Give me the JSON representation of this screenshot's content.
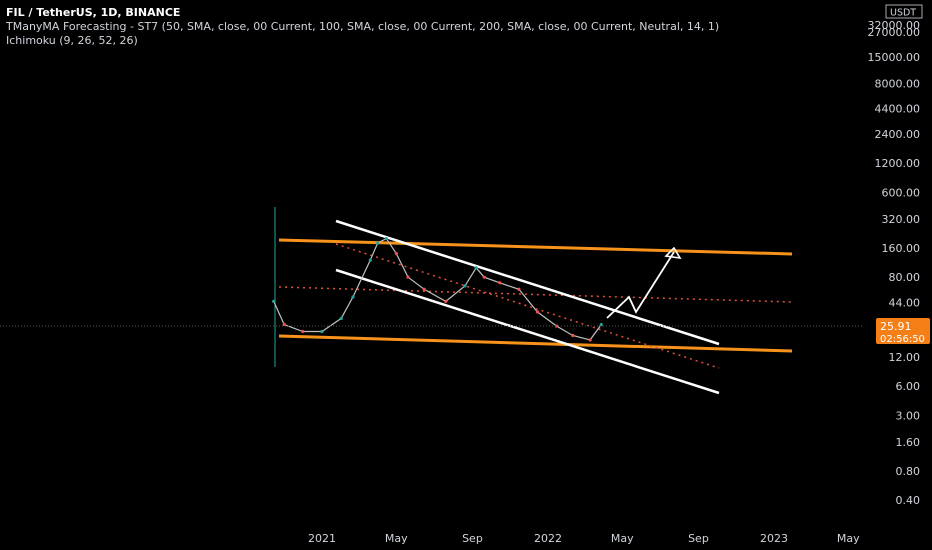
{
  "header": {
    "title": "FIL / TetherUS, 1D, BINANCE",
    "indicator1": "TManyMA Forecasting - ST7 (50, SMA, close, 00 Current, 100, SMA, close, 00 Current, 200, SMA, close, 00 Current, Neutral, 14, 1)",
    "indicator2": "Ichimoku (9, 26, 52, 26)"
  },
  "colors": {
    "background": "#000000",
    "orange": "#f7931a",
    "white": "#ffffff",
    "dotted_red": "#e0503a",
    "badge": "#f57f17",
    "candle_up": "#26a69a",
    "candle_down": "#ef5350"
  },
  "price_badge": {
    "price": "25.91",
    "countdown": "02:56:50"
  },
  "y_axis": {
    "currency": "USDT",
    "scale": "log",
    "ticks": [
      "32000.00",
      "27000.00",
      "15000.00",
      "8000.00",
      "4400.00",
      "2400.00",
      "1200.00",
      "600.00",
      "320.00",
      "160.00",
      "80.00",
      "44.00",
      "12.00",
      "6.00",
      "3.00",
      "1.60",
      "0.80",
      "0.40"
    ]
  },
  "x_axis": {
    "ticks": [
      "2021",
      "May",
      "Sep",
      "2022",
      "May",
      "Sep",
      "2023",
      "May"
    ]
  },
  "chart_data": {
    "type": "line",
    "title": "FIL / TetherUS, 1D, BINANCE",
    "y_scale": "log",
    "y_unit": "USDT",
    "current_price": 25.91,
    "series": [
      {
        "values": [
          {
            "x": "2020-10-15",
            "y": 45
          },
          {
            "x": "2020-11-01",
            "y": 26
          },
          {
            "x": "2020-12-01",
            "y": 22
          },
          {
            "x": "2021-01-01",
            "y": 22
          },
          {
            "x": "2021-02-01",
            "y": 30
          },
          {
            "x": "2021-02-20",
            "y": 50
          },
          {
            "x": "2021-03-20",
            "y": 120
          },
          {
            "x": "2021-04-01",
            "y": 180
          },
          {
            "x": "2021-04-15",
            "y": 200
          },
          {
            "x": "2021-05-01",
            "y": 140
          },
          {
            "x": "2021-05-20",
            "y": 80
          },
          {
            "x": "2021-06-15",
            "y": 60
          },
          {
            "x": "2021-07-20",
            "y": 45
          },
          {
            "x": "2021-08-20",
            "y": 65
          },
          {
            "x": "2021-09-07",
            "y": 100
          },
          {
            "x": "2021-09-20",
            "y": 80
          },
          {
            "x": "2021-10-15",
            "y": 70
          },
          {
            "x": "2021-11-15",
            "y": 60
          },
          {
            "x": "2021-12-15",
            "y": 35
          },
          {
            "x": "2022-01-15",
            "y": 25
          },
          {
            "x": "2022-02-10",
            "y": 20
          },
          {
            "x": "2022-03-10",
            "y": 18
          },
          {
            "x": "2022-03-28",
            "y": 25.91
          }
        ]
      }
    ]
  }
}
